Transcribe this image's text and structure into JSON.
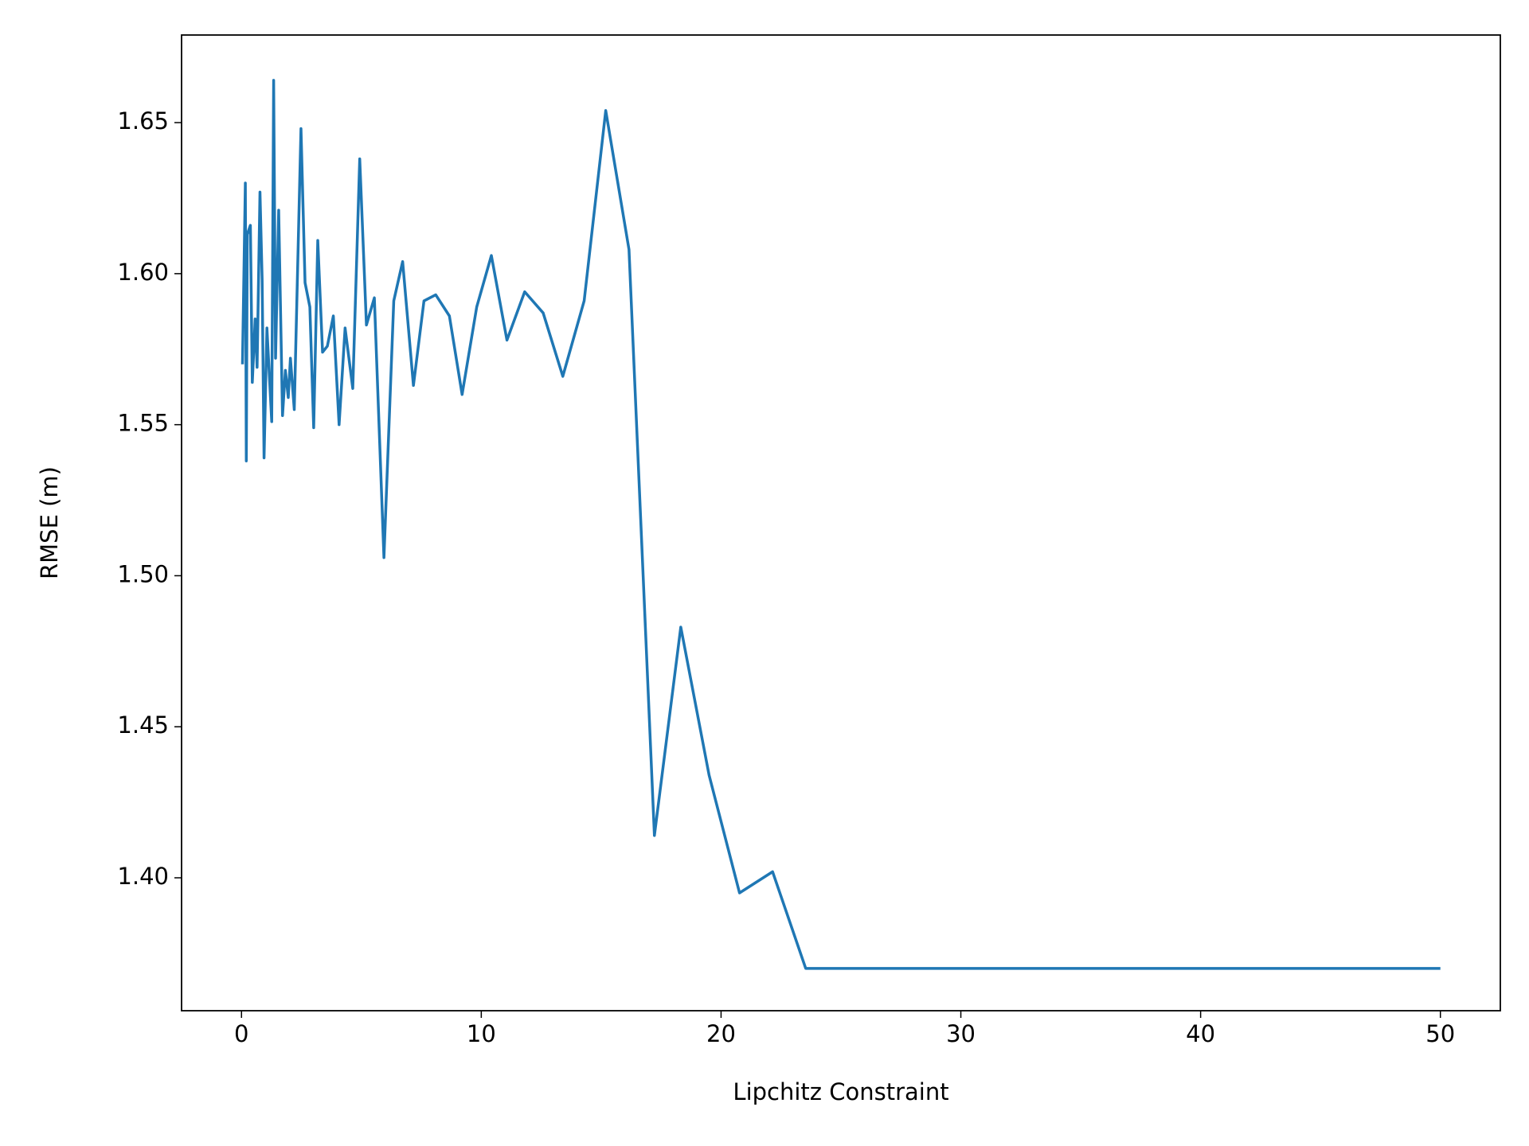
{
  "chart_data": {
    "type": "line",
    "x_label": "Lipchitz Constraint",
    "y_label": "RMSE (m)",
    "xlim": [
      -2.5,
      52.5
    ],
    "ylim": [
      1.356,
      1.679
    ],
    "xticks": [
      0,
      10,
      20,
      30,
      40,
      50
    ],
    "yticks": [
      {
        "value": 1.4,
        "label": "1.40"
      },
      {
        "value": 1.45,
        "label": "1.45"
      },
      {
        "value": 1.5,
        "label": "1.50"
      },
      {
        "value": 1.55,
        "label": "1.55"
      },
      {
        "value": 1.6,
        "label": "1.60"
      },
      {
        "value": 1.65,
        "label": "1.65"
      }
    ],
    "series": [
      {
        "color": "#1f77b4",
        "x": [
          0.04,
          0.16,
          0.2,
          0.24,
          0.37,
          0.45,
          0.57,
          0.65,
          0.77,
          0.86,
          0.94,
          1.06,
          1.26,
          1.34,
          1.42,
          1.55,
          1.71,
          1.83,
          1.95,
          2.04,
          2.2,
          2.48,
          2.65,
          2.85,
          3.01,
          3.18,
          3.38,
          3.58,
          3.83,
          4.07,
          4.32,
          4.64,
          4.93,
          5.21,
          5.54,
          5.94,
          6.35,
          6.72,
          7.17,
          7.61,
          8.1,
          8.67,
          9.2,
          9.81,
          10.42,
          11.07,
          11.81,
          12.58,
          13.4,
          14.29,
          15.19,
          16.16,
          17.22,
          18.32,
          19.5,
          20.77,
          22.15,
          23.53,
          50
        ],
        "values": [
          1.57,
          1.63,
          1.538,
          1.613,
          1.616,
          1.564,
          1.585,
          1.569,
          1.627,
          1.598,
          1.539,
          1.582,
          1.551,
          1.664,
          1.572,
          1.621,
          1.553,
          1.568,
          1.559,
          1.572,
          1.555,
          1.648,
          1.597,
          1.589,
          1.549,
          1.611,
          1.574,
          1.576,
          1.586,
          1.55,
          1.582,
          1.562,
          1.638,
          1.583,
          1.592,
          1.506,
          1.591,
          1.604,
          1.563,
          1.591,
          1.593,
          1.586,
          1.56,
          1.589,
          1.606,
          1.578,
          1.594,
          1.587,
          1.566,
          1.591,
          1.654,
          1.608,
          1.414,
          1.483,
          1.434,
          1.395,
          1.402,
          1.37,
          1.37
        ]
      }
    ]
  }
}
